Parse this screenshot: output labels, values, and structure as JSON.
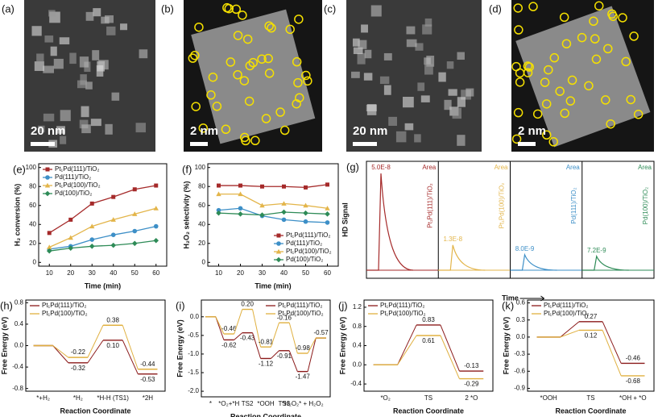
{
  "images": [
    {
      "label": "(a)",
      "scale_bar": "20 nm"
    },
    {
      "label": "(b)",
      "scale_bar": "2 nm"
    },
    {
      "label": "(c)",
      "scale_bar": "20 nm"
    },
    {
      "label": "(d)",
      "scale_bar": "2 nm"
    }
  ],
  "chart_data": [
    {
      "type": "line",
      "panel": "(e)",
      "x": [
        10,
        20,
        30,
        40,
        50,
        60
      ],
      "xlim": [
        5,
        65
      ],
      "xticks": [
        10,
        20,
        30,
        40,
        50,
        60
      ],
      "ylim": [
        -4,
        104
      ],
      "yticks": [
        0,
        20,
        40,
        60,
        80,
        100
      ],
      "xlabel": "Time (min)",
      "ylabel": "H₂ conversion (%)",
      "legend": "upper left",
      "series": [
        {
          "name": "Pt₁Pd(111)/TiO₂",
          "color": "#a52a2a",
          "values": [
            31,
            45,
            62,
            69,
            77,
            81
          ]
        },
        {
          "name": "Pd(111)/TiO₂",
          "color": "#3d8fc7",
          "values": [
            14,
            17,
            24,
            29,
            33,
            38
          ]
        },
        {
          "name": "Pt₁Pd(100)/TiO₂",
          "color": "#e3b54a",
          "values": [
            16,
            26,
            38,
            45,
            51,
            57
          ]
        },
        {
          "name": "Pd(100)/TiO₂",
          "color": "#2e8b57",
          "values": [
            12,
            15,
            17,
            18,
            20,
            23
          ]
        }
      ]
    },
    {
      "type": "line",
      "panel": "(f)",
      "x": [
        10,
        20,
        30,
        40,
        50,
        60
      ],
      "xlim": [
        5,
        65
      ],
      "xticks": [
        10,
        20,
        30,
        40,
        50,
        60
      ],
      "ylim": [
        -4,
        104
      ],
      "yticks": [
        0,
        20,
        40,
        60,
        80,
        100
      ],
      "xlabel": "Time (min)",
      "ylabel": "H₂O₂ selectivity (%)",
      "legend": "lower right",
      "series": [
        {
          "name": "Pt₁Pd(111)/TiO₂",
          "color": "#a52a2a",
          "values": [
            81,
            81,
            80,
            80,
            79,
            82
          ]
        },
        {
          "name": "Pd(111)/TiO₂",
          "color": "#3d8fc7",
          "values": [
            55,
            57,
            49,
            45,
            43,
            42
          ]
        },
        {
          "name": "Pt₁Pd(100)/TiO₂",
          "color": "#e3b54a",
          "values": [
            72,
            72,
            60,
            62,
            60,
            57
          ]
        },
        {
          "name": "Pd(100)/TiO₂",
          "color": "#2e8b57",
          "values": [
            52,
            51,
            50,
            53,
            52,
            51
          ]
        }
      ]
    },
    {
      "type": "peaks",
      "panel": "(g)",
      "categories": [
        "Pt₁Pd(111)/TiO₂",
        "Pt₁Pd(100)/TiO₂",
        "Pd(111)/TiO₂",
        "Pd(100)/TiO₂"
      ],
      "values": [
        5e-08,
        1.3e-08,
        8e-09,
        7.2e-09
      ],
      "value_labels": [
        "5.0E-8",
        "1.3E-8",
        "8.0E-9",
        "7.2E-9"
      ],
      "colors": [
        "#a52a2a",
        "#e3b54a",
        "#3d8fc7",
        "#2e8b57"
      ],
      "area_label": "Area",
      "xlabel": "Time",
      "ylabel": "HD Signal"
    },
    {
      "type": "energy",
      "panel": "(h)",
      "categories": [
        "*+H₂",
        "*H₂",
        "*H-H (TS1)",
        "*2H"
      ],
      "ylim": [
        -0.85,
        0.85
      ],
      "yticks": [
        0.8,
        0.4,
        {
          "value": 0,
          "label": "0.0"
        },
        -0.4,
        -0.8
      ],
      "xlabel": "Reaction Coordinate",
      "ylabel": "Free Energy (eV)",
      "legend": "upper left",
      "series": [
        {
          "name": "Pt₁Pd(111)/TiO₂",
          "color": "#8b1a1a",
          "values": [
            0,
            -0.32,
            0.1,
            -0.53
          ],
          "value_labels": [
            null,
            "-0.32",
            "0.10",
            "-0.53"
          ]
        },
        {
          "name": "Pt₁Pd(100)/TiO₂",
          "color": "#e0b040",
          "values": [
            0,
            -0.22,
            0.38,
            -0.44
          ],
          "value_labels": [
            null,
            "-0.22",
            "0.38",
            "-0.44"
          ]
        }
      ]
    },
    {
      "type": "energy",
      "panel": "(i)",
      "categories": [
        "*",
        "*O₂+*H",
        "TS2",
        "*OOH",
        "TS3",
        "*H₂O₂* + H₂O₂",
        null
      ],
      "ylim": [
        -2.15,
        0.45
      ],
      "yticks": [
        {
          "value": 0,
          "label": "0.0"
        },
        -0.5,
        {
          "value": -1,
          "label": "-1.0"
        },
        -1.5,
        {
          "value": -2,
          "label": "-2.0"
        }
      ],
      "xlabel": "Reaction Coordinate",
      "ylabel": "Free Energy (eV)",
      "legend": "upper right",
      "series": [
        {
          "name": "Pt₁Pd(111)/TiO₂",
          "color": "#8b1a1a",
          "values": [
            0,
            -0.62,
            -0.43,
            -1.12,
            -0.91,
            -1.47,
            -0.57
          ],
          "value_labels": [
            null,
            "-0.62",
            "-0.43",
            "-1.12",
            "-0.91",
            "-1.47",
            "-0.57"
          ]
        },
        {
          "name": "Pt₁Pd(100)/TiO₂",
          "color": "#e0b040",
          "values": [
            0,
            -0.46,
            0.2,
            -0.81,
            -0.16,
            -0.98,
            -0.57
          ],
          "value_labels": [
            null,
            "-0.46",
            "0.20",
            "-0.81",
            "-0.16",
            "-0.98",
            null
          ]
        }
      ]
    },
    {
      "type": "energy",
      "panel": "(j)",
      "categories": [
        "*O₂",
        "TS",
        "2 *O"
      ],
      "ylim": [
        -0.55,
        1.35
      ],
      "yticks": [
        1.2,
        0.8,
        0.4,
        {
          "value": 0,
          "label": "0.0"
        },
        -0.4
      ],
      "xlabel": "Reaction Coordinate",
      "ylabel": "Free Energy (eV)",
      "legend": "upper left",
      "series": [
        {
          "name": "Pt₁Pd(111)/TiO₂",
          "color": "#8b1a1a",
          "values": [
            0,
            0.83,
            -0.13
          ],
          "value_labels": [
            null,
            "0.83",
            "-0.13"
          ]
        },
        {
          "name": "Pt₁Pd(100)/TiO₂",
          "color": "#e0b040",
          "values": [
            0,
            0.61,
            -0.29
          ],
          "value_labels": [
            null,
            "0.61",
            "-0.29"
          ]
        }
      ]
    },
    {
      "type": "energy",
      "panel": "(k)",
      "categories": [
        "*OOH",
        "TS",
        "*OH + *O"
      ],
      "ylim": [
        -0.95,
        0.65
      ],
      "yticks": [
        0.6,
        0.3,
        {
          "value": 0,
          "label": "0.0"
        },
        -0.3,
        -0.6,
        -0.9
      ],
      "xlabel": "Reaction Coordinate",
      "ylabel": "Free Energy (eV)",
      "legend": "upper left",
      "series": [
        {
          "name": "Pt₁Pd(111)/TiO₂",
          "color": "#8b1a1a",
          "values": [
            0,
            0.27,
            -0.46
          ],
          "value_labels": [
            null,
            "0.27",
            "-0.46"
          ]
        },
        {
          "name": "Pt₁Pd(100)/TiO₂",
          "color": "#e0b040",
          "values": [
            0,
            0.12,
            -0.68
          ],
          "value_labels": [
            null,
            "0.12",
            "-0.68"
          ]
        }
      ]
    }
  ]
}
